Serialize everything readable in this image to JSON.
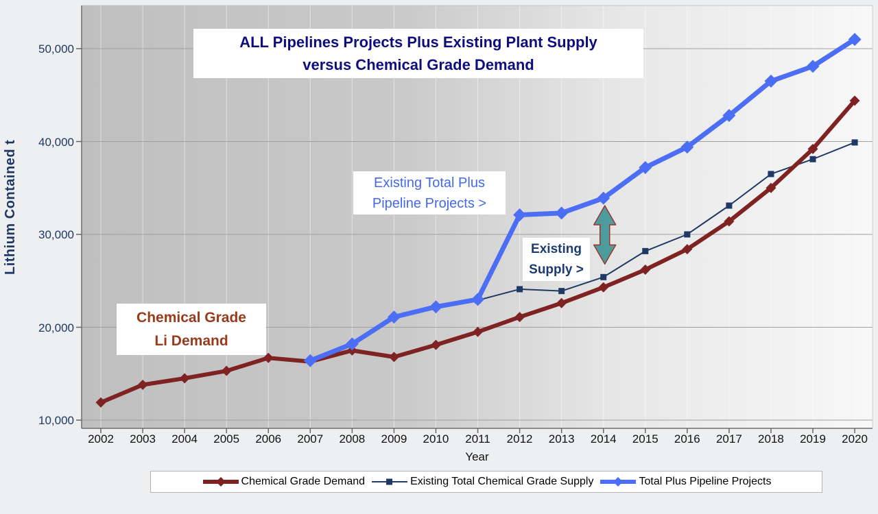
{
  "title": {
    "line1": "ALL Pipelines Projects Plus Existing Plant Supply",
    "line2": "versus Chemical Grade Demand"
  },
  "annotations": {
    "pipeline_label": {
      "line1": "Existing Total Plus",
      "line2": "Pipeline Projects >",
      "color": "#4468e8"
    },
    "existing_supply_label": {
      "line1": "Existing",
      "line2": "Supply >",
      "color": "#1c3b6e"
    },
    "demand_label": {
      "line1": "Chemical Grade",
      "line2": "Li Demand",
      "color": "#993a1d"
    }
  },
  "chart_data": {
    "type": "line",
    "title": "ALL Pipelines Projects Plus Existing Plant Supply versus Chemical Grade Demand",
    "xlabel": "Year",
    "ylabel": "Lithium Contained t",
    "x": [
      2002,
      2003,
      2004,
      2005,
      2006,
      2007,
      2008,
      2009,
      2010,
      2011,
      2012,
      2013,
      2014,
      2015,
      2016,
      2017,
      2018,
      2019,
      2020
    ],
    "ylim": [
      9100,
      54700
    ],
    "yticks": [
      10000,
      20000,
      30000,
      40000,
      50000
    ],
    "ytick_labels": [
      "10,000",
      "20,000",
      "30,000",
      "40,000",
      "50,000"
    ],
    "grid": true,
    "legend_position": "bottom",
    "series": [
      {
        "name": "Chemical Grade Demand",
        "color": "#7e2222",
        "marker": "diamond",
        "line_width": 6,
        "start_year": 2002,
        "values": [
          11900,
          13800,
          14500,
          15300,
          16700,
          16300,
          17500,
          16800,
          18100,
          19500,
          21100,
          22600,
          24300,
          26200,
          28400,
          31400,
          35000,
          39200,
          44400
        ]
      },
      {
        "name": "Existing Total Chemical Grade Supply",
        "color": "#1f3864",
        "marker": "square",
        "line_width": 2,
        "start_year": 2011,
        "values": [
          22900,
          24100,
          23900,
          25400,
          28200,
          30000,
          33100,
          36500,
          38100,
          39900
        ]
      },
      {
        "name": "Total Plus Pipeline Projects",
        "color": "#4c6ef5",
        "marker": "diamond",
        "line_width": 7,
        "start_year": 2007,
        "values": [
          16400,
          18200,
          21100,
          22200,
          23000,
          32100,
          32300,
          33900,
          37200,
          39400,
          42800,
          46500,
          48100,
          51000
        ]
      }
    ],
    "arrow": {
      "x_year": 2014,
      "from_value": 33100,
      "to_value": 26800,
      "fill": "#4e9b9b",
      "stroke": "#963634"
    }
  }
}
